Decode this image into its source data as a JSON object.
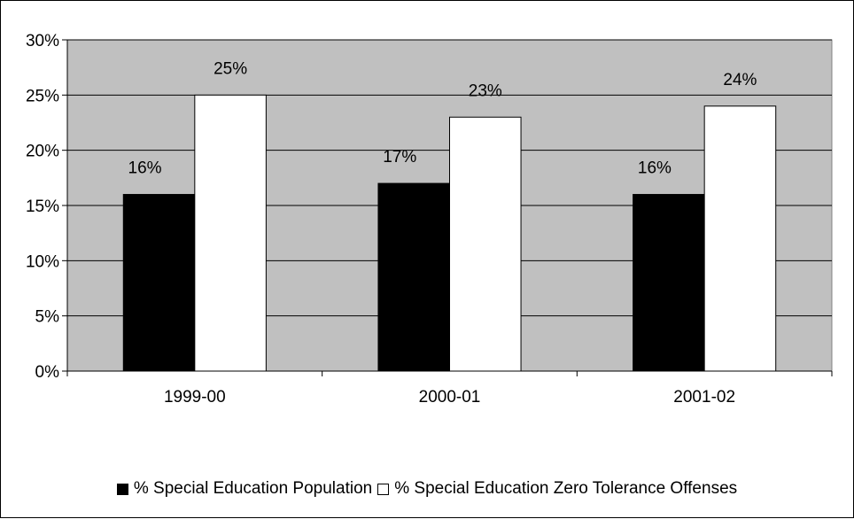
{
  "chart_data": {
    "type": "bar",
    "categories": [
      "1999-00",
      "2000-01",
      "2001-02"
    ],
    "series": [
      {
        "name": "% Special Education Population",
        "values": [
          16,
          17,
          16
        ],
        "color": "#000000"
      },
      {
        "name": "% Special Education Zero Tolerance Offenses",
        "values": [
          25,
          23,
          24
        ],
        "color": "#ffffff"
      }
    ],
    "data_labels": [
      [
        "16%",
        "17%",
        "16%"
      ],
      [
        "25%",
        "23%",
        "24%"
      ]
    ],
    "y_ticks": [
      "0%",
      "5%",
      "10%",
      "15%",
      "20%",
      "25%",
      "30%"
    ],
    "ylim": [
      0,
      30
    ],
    "title": "",
    "xlabel": "",
    "ylabel": "",
    "grid": true,
    "plot_background": "#c0c0c0",
    "legend_position": "bottom"
  }
}
